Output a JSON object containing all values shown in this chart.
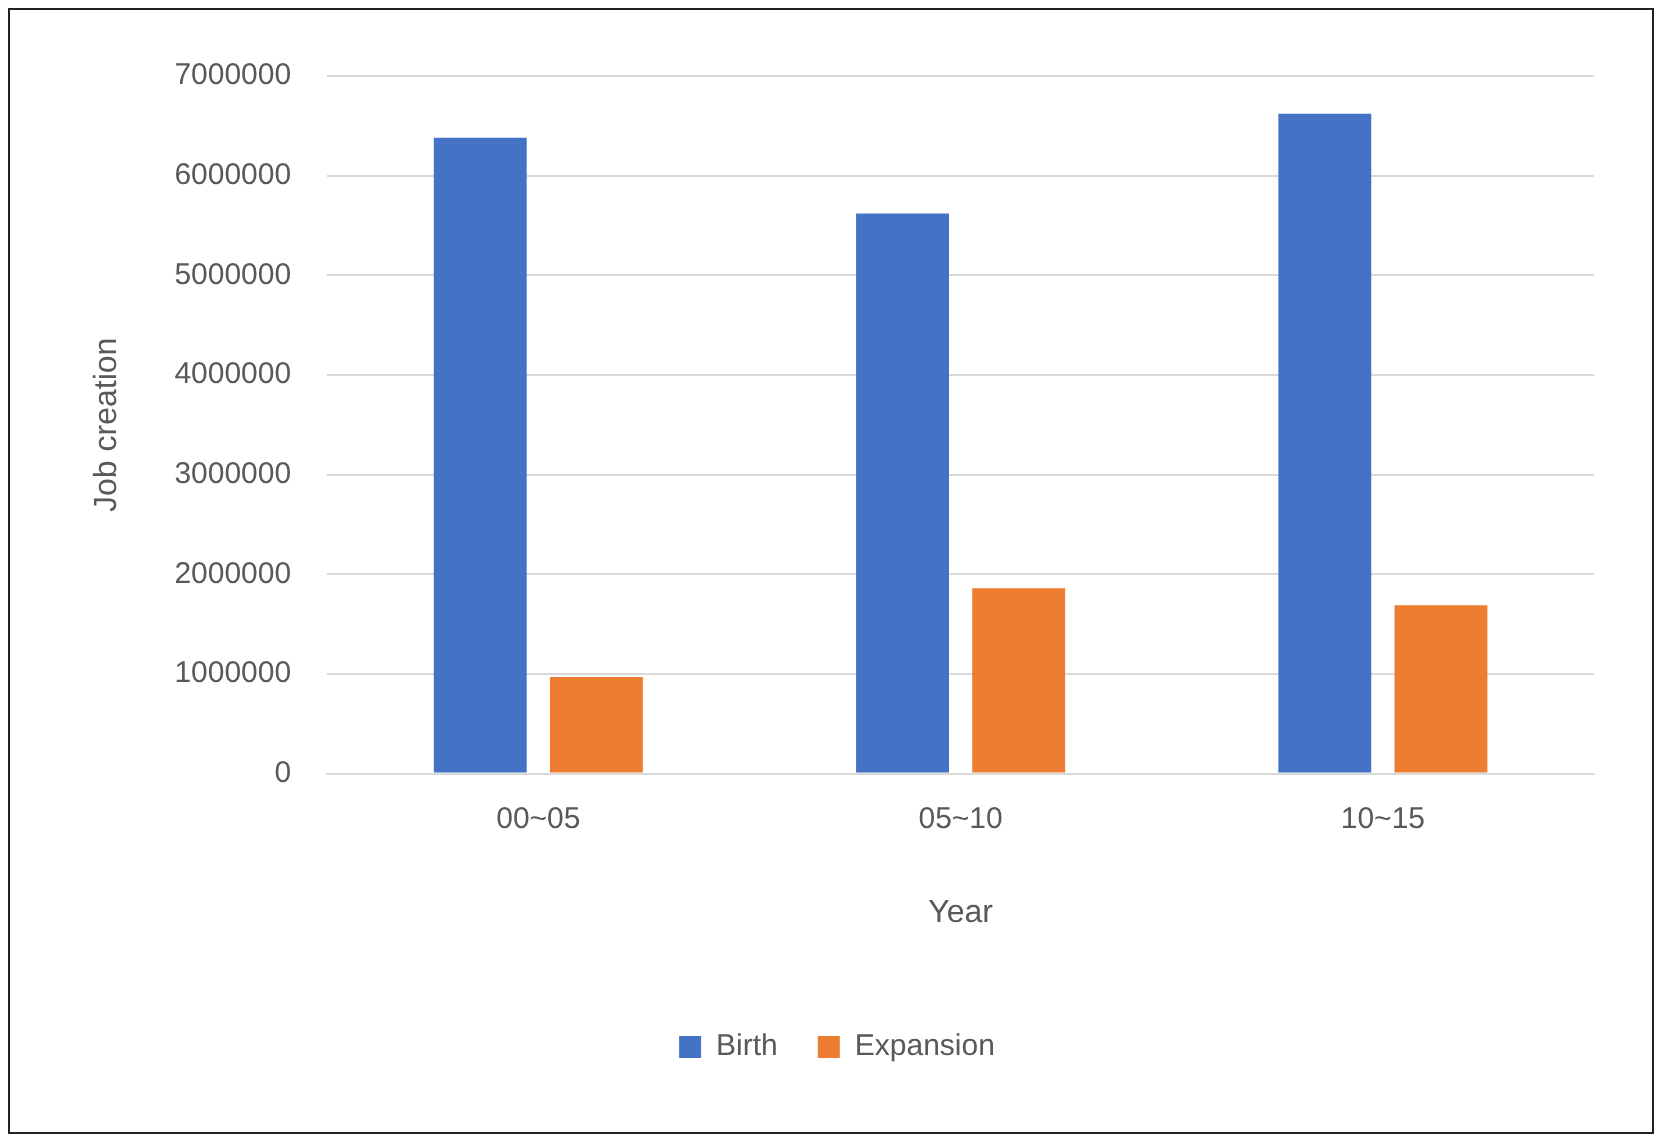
{
  "chart_data": {
    "type": "bar",
    "xlabel": "Year",
    "ylabel": "Job creation",
    "categories": [
      "00~05",
      "05~10",
      "10~15"
    ],
    "series": [
      {
        "name": "Birth",
        "color": "#4472c4",
        "values": [
          6380000,
          5620000,
          6620000
        ]
      },
      {
        "name": "Expansion",
        "color": "#ed7d31",
        "values": [
          970000,
          1860000,
          1690000
        ]
      }
    ],
    "ylim": [
      0,
      7000000
    ],
    "yticks": [
      0,
      1000000,
      2000000,
      3000000,
      4000000,
      5000000,
      6000000,
      7000000
    ],
    "grid": "y",
    "legend": "bottom"
  }
}
